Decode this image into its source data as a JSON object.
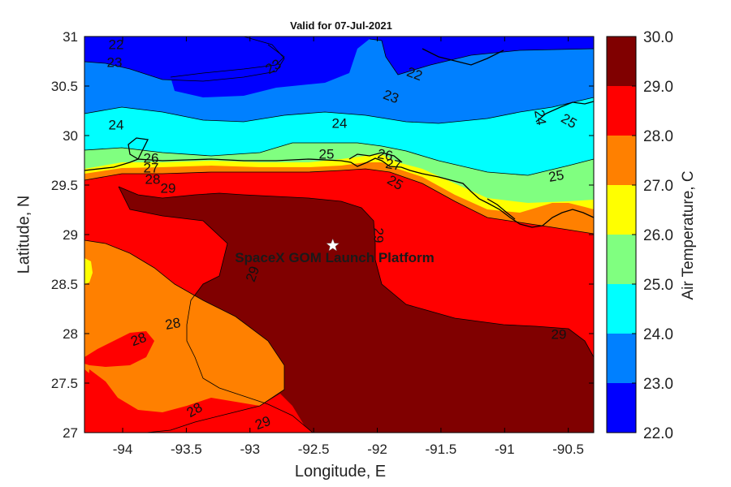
{
  "title": "Valid for 07-Jul-2021",
  "x_axis": {
    "label": "Longitude, E",
    "ticks": [
      "-94",
      "-93.5",
      "-93",
      "-92.5",
      "-92",
      "-91.5",
      "-91",
      "-90.5"
    ]
  },
  "y_axis": {
    "label": "Latitude, N",
    "ticks": [
      "31",
      "30.5",
      "30",
      "29.5",
      "29",
      "28.5",
      "28",
      "27.5",
      "27"
    ]
  },
  "colorbar": {
    "label": "Air Temperature, C",
    "ticks": [
      "30.0",
      "29.0",
      "28.0",
      "27.0",
      "26.0",
      "25.0",
      "24.0",
      "23.0",
      "22.0"
    ],
    "levels": [
      {
        "range": [
          22,
          23
        ],
        "color": "#0000ff"
      },
      {
        "range": [
          23,
          24
        ],
        "color": "#0080ff"
      },
      {
        "range": [
          24,
          25
        ],
        "color": "#00ffff"
      },
      {
        "range": [
          25,
          26
        ],
        "color": "#80ff80"
      },
      {
        "range": [
          26,
          27
        ],
        "color": "#ffff00"
      },
      {
        "range": [
          27,
          28
        ],
        "color": "#ff8000"
      },
      {
        "range": [
          28,
          29
        ],
        "color": "#ff0000"
      },
      {
        "range": [
          29,
          30
        ],
        "color": "#800000"
      }
    ]
  },
  "marker": {
    "label": "SpaceX GOM Launch Platform",
    "lon": -92.35,
    "lat": 28.89,
    "icon": "star-icon"
  },
  "contour_labels": [
    "22",
    "23",
    "23",
    "22",
    "23",
    "24",
    "24",
    "24",
    "25",
    "25",
    "25",
    "26",
    "26",
    "27",
    "27",
    "28",
    "29",
    "28",
    "28",
    "28",
    "29",
    "29",
    "29",
    "29",
    "25"
  ]
}
